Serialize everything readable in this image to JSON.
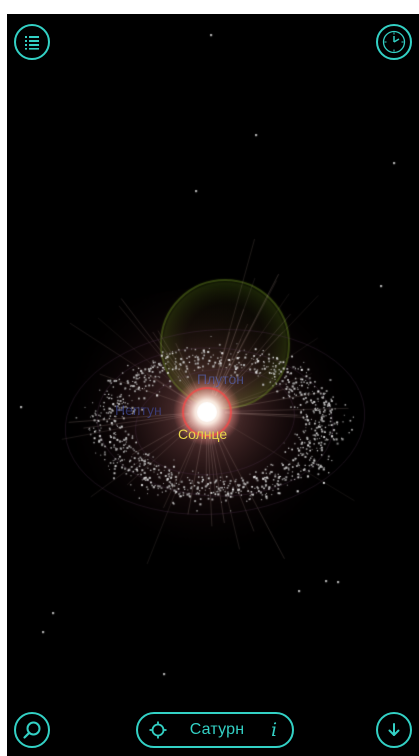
{
  "toolbar": {
    "menu_icon": "list-icon",
    "clock_icon": "clock-icon",
    "search_icon": "search-icon",
    "download_icon": "arrow-down-icon"
  },
  "selector": {
    "target_icon": "crosshair-icon",
    "selected_planet": "Сатурн",
    "info_glyph": "i"
  },
  "scene": {
    "labels": {
      "sun": "Солнце",
      "pluto": "Плутон",
      "neptune": "Нептун"
    }
  },
  "colors": {
    "accent": "#33d1c5",
    "background": "#000000",
    "sun_label": "#e8d54a",
    "faint_label": "#4a5ec8"
  }
}
